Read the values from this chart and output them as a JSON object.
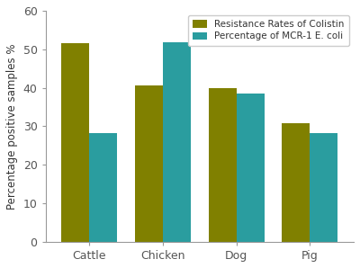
{
  "categories": [
    "Cattle",
    "Chicken",
    "Dog",
    "Pig"
  ],
  "resistance_rates": [
    51.5,
    40.5,
    39.8,
    30.8
  ],
  "mcr1_percentages": [
    28.3,
    51.8,
    38.5,
    28.2
  ],
  "bar_color_resistance": "#808000",
  "bar_color_mcr1": "#2A9D9F",
  "ylabel": "Percentage positive samples %",
  "ylim": [
    0,
    60
  ],
  "yticks": [
    0,
    10,
    20,
    30,
    40,
    50,
    60
  ],
  "legend_labels": [
    "Resistance Rates of Colistin",
    "Percentage of MCR-1 E. coli"
  ],
  "bar_width": 0.38,
  "background_color": "#ffffff",
  "axis_fontsize": 8.5,
  "tick_fontsize": 9,
  "legend_fontsize": 7.5,
  "spine_color": "#999999",
  "tick_color": "#555555",
  "label_color": "#333333"
}
